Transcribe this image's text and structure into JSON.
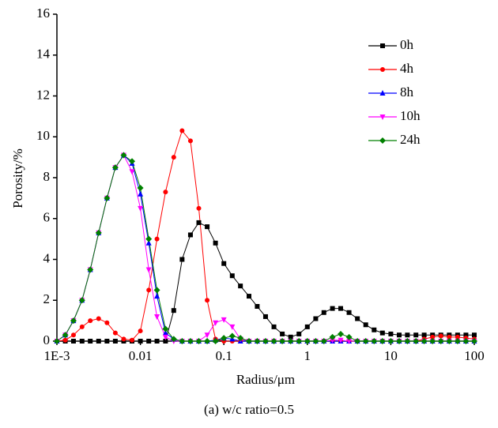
{
  "chart_data": {
    "type": "line",
    "x_label": "Radius/μm",
    "y_label": "Porosity/%",
    "caption": "(a) w/c ratio=0.5",
    "log_x": true,
    "xlim": [
      0.001,
      100
    ],
    "ylim": [
      0,
      16
    ],
    "xticks": [
      {
        "value": 0.001,
        "label": "1E-3"
      },
      0.01,
      0.1,
      1,
      10,
      100
    ],
    "yticks": [
      0,
      2,
      4,
      6,
      8,
      10,
      12,
      14,
      16
    ],
    "legend": "upper right",
    "x": [
      0.001,
      0.00126,
      0.00158,
      0.002,
      0.00251,
      0.00316,
      0.00398,
      0.00501,
      0.00631,
      0.00794,
      0.01,
      0.0126,
      0.0158,
      0.02,
      0.0251,
      0.0316,
      0.0398,
      0.0501,
      0.0631,
      0.0794,
      0.1,
      0.126,
      0.158,
      0.2,
      0.251,
      0.316,
      0.398,
      0.501,
      0.631,
      0.794,
      1,
      1.26,
      1.58,
      2,
      2.51,
      3.16,
      3.98,
      5.01,
      6.31,
      7.94,
      10,
      12.6,
      15.8,
      20,
      25.1,
      31.6,
      39.8,
      50.1,
      63.1,
      79.4,
      100
    ],
    "series": [
      {
        "name": "0h",
        "color": "#000000",
        "marker": "square",
        "values": [
          0,
          0,
          0,
          0,
          0,
          0,
          0,
          0,
          0,
          0,
          0,
          0,
          0,
          0,
          1.5,
          4.0,
          5.2,
          5.8,
          5.6,
          4.8,
          3.8,
          3.2,
          2.7,
          2.2,
          1.7,
          1.2,
          0.7,
          0.35,
          0.2,
          0.35,
          0.7,
          1.1,
          1.4,
          1.6,
          1.6,
          1.4,
          1.1,
          0.8,
          0.55,
          0.4,
          0.35,
          0.3,
          0.3,
          0.3,
          0.3,
          0.3,
          0.3,
          0.3,
          0.3,
          0.3,
          0.3
        ]
      },
      {
        "name": "4h",
        "color": "#ff0000",
        "marker": "circle",
        "values": [
          0,
          0.05,
          0.3,
          0.7,
          1.0,
          1.1,
          0.9,
          0.4,
          0.1,
          0.05,
          0.5,
          2.5,
          5.0,
          7.3,
          9.0,
          10.3,
          9.8,
          6.5,
          2.0,
          0.1,
          0,
          0,
          0,
          0,
          0,
          0,
          0,
          0,
          0,
          0,
          0,
          0,
          0,
          0,
          0,
          0,
          0,
          0,
          0,
          0,
          0,
          0,
          0,
          0,
          0.1,
          0.2,
          0.25,
          0.2,
          0.2,
          0.15,
          0.1
        ]
      },
      {
        "name": "8h",
        "color": "#0000ff",
        "marker": "triangle-up",
        "values": [
          0,
          0.3,
          1.0,
          2.0,
          3.5,
          5.3,
          7.0,
          8.5,
          9.1,
          8.7,
          7.2,
          4.8,
          2.2,
          0.4,
          0.1,
          0,
          0,
          0,
          0,
          0.05,
          0.15,
          0.1,
          0,
          0,
          0,
          0,
          0,
          0,
          0,
          0,
          0,
          0,
          0,
          0,
          0,
          0,
          0,
          0,
          0,
          0,
          0,
          0,
          0,
          0,
          0,
          0,
          0,
          0,
          0,
          0,
          0
        ]
      },
      {
        "name": "10h",
        "color": "#ff00ff",
        "marker": "triangle-down",
        "values": [
          0,
          0.3,
          1.0,
          2.0,
          3.5,
          5.3,
          7.0,
          8.5,
          9.1,
          8.3,
          6.5,
          3.5,
          1.2,
          0.2,
          0,
          0,
          0,
          0,
          0.3,
          0.9,
          1.05,
          0.7,
          0.1,
          0,
          0,
          0,
          0,
          0,
          0,
          0,
          0,
          0,
          0,
          0.05,
          0.05,
          0,
          0,
          0,
          0,
          0,
          0,
          0,
          0,
          0,
          0,
          0,
          0,
          0,
          0,
          0,
          0
        ]
      },
      {
        "name": "24h",
        "color": "#008000",
        "marker": "diamond",
        "values": [
          0,
          0.3,
          1.0,
          2.0,
          3.5,
          5.3,
          7.0,
          8.5,
          9.1,
          8.8,
          7.5,
          5.0,
          2.5,
          0.6,
          0.1,
          0,
          0,
          0,
          0,
          0,
          0.15,
          0.25,
          0.15,
          0,
          0,
          0,
          0,
          0,
          0,
          0,
          0,
          0,
          0,
          0.2,
          0.35,
          0.2,
          0,
          0,
          0,
          0,
          0,
          0,
          0,
          0,
          0,
          0,
          0,
          0,
          0,
          0,
          0
        ]
      }
    ]
  }
}
